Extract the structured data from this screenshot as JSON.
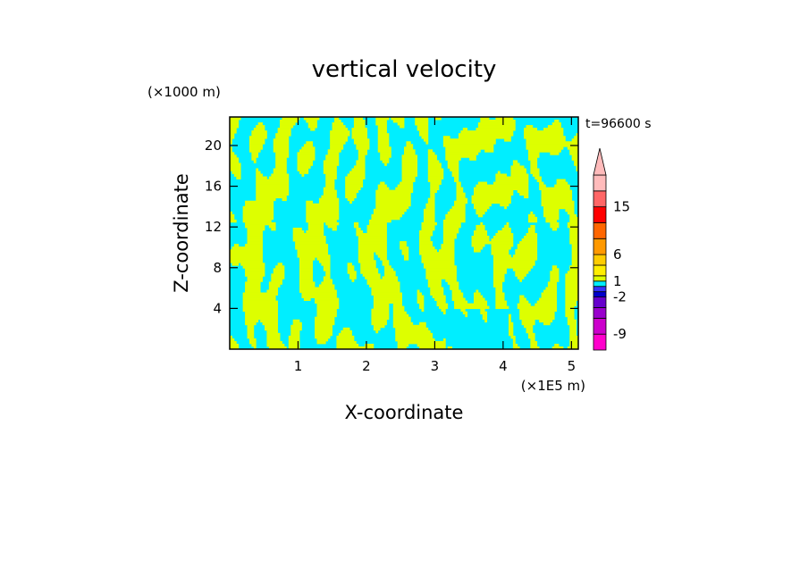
{
  "chart_data": {
    "type": "heatmap",
    "title": "vertical velocity",
    "xlabel": "X-coordinate",
    "ylabel": "Z-coordinate",
    "x_unit": "(×1E5 m)",
    "y_unit": "(×1000 m)",
    "time_label": "t=96600 s",
    "xlim": [
      0,
      5.1
    ],
    "ylim": [
      0,
      22.8
    ],
    "x_ticks": [
      1,
      2,
      3,
      4,
      5
    ],
    "y_ticks": [
      4,
      8,
      12,
      16,
      20
    ],
    "colorbar": {
      "levels": [
        -12,
        -9,
        -6,
        -4,
        -2,
        -1,
        0,
        1,
        2,
        4,
        6,
        9,
        12,
        15,
        18,
        21
      ],
      "tick_labels": [
        "15",
        "6",
        "1",
        "-2",
        "-9"
      ],
      "tick_values": [
        15,
        6,
        1,
        -2,
        -9
      ],
      "colors": [
        "#ff00cc",
        "#cc00cc",
        "#9900cc",
        "#6600cc",
        "#0000cc",
        "#3333ff",
        "#00eeff",
        "#ddff00",
        "#ffee00",
        "#ffcc00",
        "#ff9900",
        "#ff6600",
        "#ff0000",
        "#ff6666",
        "#ffbbbb"
      ],
      "extend": "max"
    },
    "field_colors": {
      "negative": "#00eeff",
      "positive": "#ddff00"
    }
  }
}
